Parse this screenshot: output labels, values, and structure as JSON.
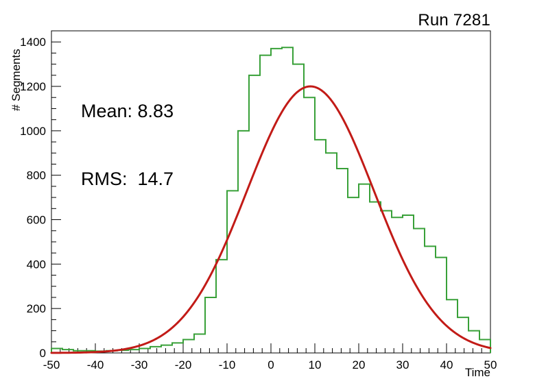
{
  "chart_data": {
    "type": "histogram",
    "title": "Run 7281",
    "xlabel": "Time",
    "ylabel": "# Segments",
    "xlim": [
      -50,
      50
    ],
    "ylim": [
      0,
      1450
    ],
    "x_major_ticks": [
      -50,
      -40,
      -30,
      -20,
      -10,
      0,
      10,
      20,
      30,
      40,
      50
    ],
    "x_tick_labels": [
      "-50",
      "-40",
      "-30",
      "-20",
      "-10",
      "0",
      "10",
      "20",
      "30",
      "40",
      "50"
    ],
    "y_major_ticks": [
      0,
      200,
      400,
      600,
      800,
      1000,
      1200,
      1400
    ],
    "y_tick_labels": [
      "0",
      "200",
      "400",
      "600",
      "800",
      "1000",
      "1200",
      "1400"
    ],
    "x_minor_step": 2,
    "y_minor_step": 50,
    "bin_start": -50,
    "bin_width": 2.5,
    "counts": [
      20,
      15,
      10,
      10,
      8,
      10,
      12,
      15,
      20,
      28,
      35,
      45,
      60,
      85,
      250,
      420,
      730,
      1000,
      1250,
      1340,
      1370,
      1375,
      1300,
      1150,
      960,
      900,
      830,
      700,
      760,
      680,
      640,
      610,
      620,
      560,
      480,
      430,
      240,
      160,
      100,
      60
    ],
    "hist_color": "#38a038",
    "fit": {
      "type": "gaussian",
      "amplitude": 1200,
      "mean": 9,
      "sigma": 14.5,
      "color": "#c21b17"
    },
    "axis_color": "#000000",
    "stats": {
      "mean": 8.83,
      "rms": 14.7,
      "mean_label": "Mean: 8.83",
      "rms_label": "RMS:  14.7"
    }
  }
}
